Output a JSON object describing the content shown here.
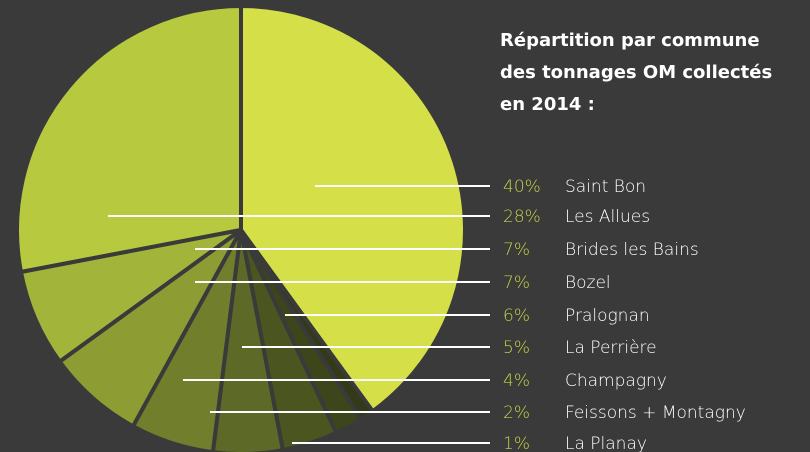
{
  "chart_data": {
    "type": "pie",
    "title_lines": [
      "Répartition par commune",
      "des tonnages OM collectés",
      "en 2014 :"
    ],
    "categories": [
      "Saint Bon",
      "Les Allues",
      "Brides les Bains",
      "Bozel",
      "Pralognan",
      "La Perrière",
      "Champagny",
      "Feissons + Montagny",
      "La Planay"
    ],
    "values": [
      40,
      28,
      7,
      7,
      6,
      5,
      4,
      2,
      1
    ],
    "value_labels": [
      "40%",
      "28%",
      "7%",
      "7%",
      "6%",
      "5%",
      "4%",
      "2%",
      "1%"
    ],
    "colors": [
      "#d5df48",
      "#b6c93f",
      "#a2b43a",
      "#8d9c33",
      "#717f2c",
      "#5d6927",
      "#4a5520",
      "#3d461b",
      "#323a17"
    ],
    "label_color": "#c3d146"
  }
}
